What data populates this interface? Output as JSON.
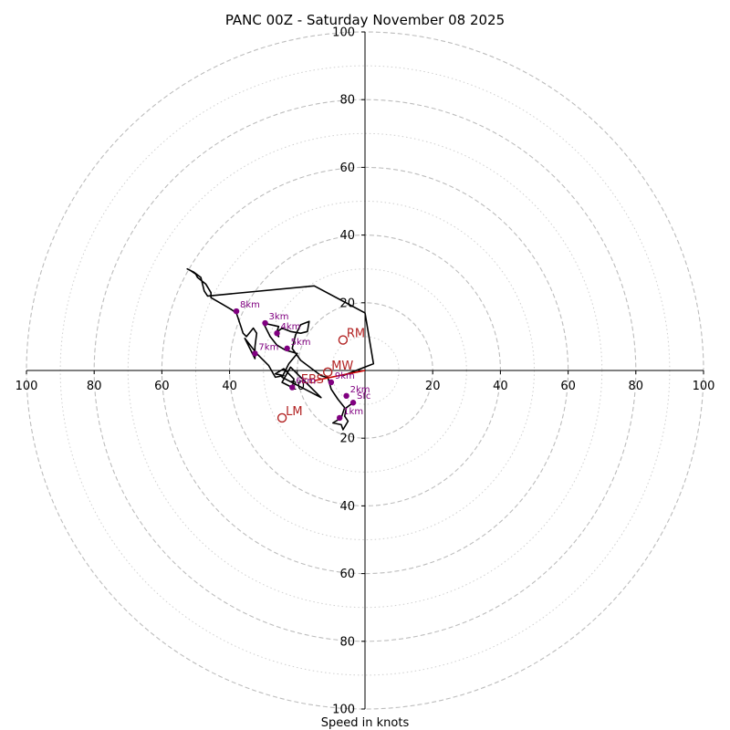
{
  "chart_data": {
    "type": "hodograph",
    "title": "PANC 00Z - Saturday November 08 2025",
    "xlabel": "Speed in knots",
    "units": "kt",
    "xlim": [
      -100,
      100
    ],
    "ylim": [
      -100,
      100
    ],
    "ring_major": [
      20,
      40,
      60,
      80,
      100
    ],
    "ring_minor": [
      10,
      30,
      50,
      70,
      90
    ],
    "x_ticks": [
      {
        "value": -100,
        "label": "100"
      },
      {
        "value": -80,
        "label": "80"
      },
      {
        "value": -60,
        "label": "60"
      },
      {
        "value": -40,
        "label": "40"
      },
      {
        "value": -20,
        "label": "20"
      },
      {
        "value": 20,
        "label": "20"
      },
      {
        "value": 40,
        "label": "40"
      },
      {
        "value": 60,
        "label": "60"
      },
      {
        "value": 80,
        "label": "80"
      },
      {
        "value": 100,
        "label": "100"
      }
    ],
    "y_ticks": [
      {
        "value": 100,
        "label": "100"
      },
      {
        "value": 80,
        "label": "80"
      },
      {
        "value": 60,
        "label": "60"
      },
      {
        "value": 40,
        "label": "40"
      },
      {
        "value": 20,
        "label": "20"
      },
      {
        "value": -20,
        "label": "20"
      },
      {
        "value": -40,
        "label": "40"
      },
      {
        "value": -60,
        "label": "60"
      },
      {
        "value": -80,
        "label": "80"
      },
      {
        "value": -100,
        "label": "100"
      }
    ],
    "trace": {
      "color": "#000000",
      "points": [
        [
          -3.5,
          -9.5
        ],
        [
          -5.5,
          -11.0
        ],
        [
          -6.0,
          -13.5
        ],
        [
          -5.0,
          -15.0
        ],
        [
          -6.5,
          -17.5
        ],
        [
          -7.0,
          -16.0
        ],
        [
          -9.5,
          -15.5
        ],
        [
          -7.0,
          -14.0
        ],
        [
          -6.0,
          -11.0
        ],
        [
          -8.0,
          -8.5
        ],
        [
          -10.0,
          -5.5
        ],
        [
          -11.0,
          -2.0
        ],
        [
          -11.5,
          -2.0
        ],
        [
          -13.0,
          -1.5
        ],
        [
          -19.0,
          3.0
        ],
        [
          -21.5,
          6.5
        ],
        [
          -20.5,
          10.5
        ],
        [
          -19.0,
          13.5
        ],
        [
          -16.5,
          14.5
        ],
        [
          -17.0,
          11.5
        ],
        [
          -19.0,
          11.0
        ],
        [
          -22.0,
          11.5
        ],
        [
          -24.5,
          12.5
        ],
        [
          -26.5,
          11.0
        ],
        [
          -25.5,
          10.0
        ],
        [
          -26.0,
          11.5
        ],
        [
          -25.5,
          13.0
        ],
        [
          -30.0,
          14.0
        ],
        [
          -28.0,
          10.0
        ],
        [
          -26.0,
          7.5
        ],
        [
          -23.5,
          6.0
        ],
        [
          -20.0,
          5.0
        ],
        [
          -22.5,
          2.0
        ],
        [
          -24.5,
          -2.0
        ],
        [
          -13.0,
          -8.0
        ],
        [
          -22.0,
          1.0
        ],
        [
          -24.5,
          -3.5
        ],
        [
          -21.5,
          -5.0
        ],
        [
          -21.0,
          -2.5
        ],
        [
          -24.0,
          0.5
        ],
        [
          -26.5,
          -1.0
        ],
        [
          -24.0,
          -1.5
        ],
        [
          -26.5,
          -2.0
        ],
        [
          -28.5,
          1.5
        ],
        [
          -32.0,
          5.0
        ],
        [
          -35.5,
          9.5
        ],
        [
          -32.5,
          3.5
        ],
        [
          -32.5,
          7.0
        ],
        [
          -32.0,
          11.0
        ],
        [
          -33.0,
          12.5
        ],
        [
          -35.0,
          10.0
        ],
        [
          -36.0,
          11.0
        ],
        [
          -36.5,
          12.5
        ],
        [
          -38.0,
          17.0
        ],
        [
          -39.5,
          18.0
        ],
        [
          -42.0,
          19.5
        ],
        [
          -45.5,
          21.5
        ],
        [
          -45.5,
          23.0
        ],
        [
          -47.0,
          25.5
        ],
        [
          -49.5,
          27.5
        ],
        [
          -50.0,
          28.5
        ],
        [
          -51.5,
          29.5
        ],
        [
          -52.5,
          30.0
        ],
        [
          -50.5,
          29.0
        ],
        [
          -48.5,
          27.5
        ],
        [
          -47.5,
          23.5
        ],
        [
          -46.5,
          22.0
        ],
        [
          -15.0,
          25.0
        ],
        [
          0.0,
          17.0
        ],
        [
          2.5,
          2.0
        ],
        [
          -6.5,
          -1.5
        ]
      ]
    },
    "height_markers": [
      {
        "label": "Sfc",
        "x": -3.5,
        "y": -9.5
      },
      {
        "label": "1km",
        "x": -7.5,
        "y": -14.0
      },
      {
        "label": "2km",
        "x": -5.5,
        "y": -7.5
      },
      {
        "label": "3km",
        "x": -29.5,
        "y": 14.0
      },
      {
        "label": "4km",
        "x": -26.0,
        "y": 11.0
      },
      {
        "label": "5km",
        "x": -23.0,
        "y": 6.5
      },
      {
        "label": "6km",
        "x": -21.5,
        "y": -5.0
      },
      {
        "label": "7km",
        "x": -32.5,
        "y": 5.0
      },
      {
        "label": "8km",
        "x": -38.0,
        "y": 17.5
      },
      {
        "label": "9km",
        "x": -10.0,
        "y": -3.5
      }
    ],
    "storm_motion": [
      {
        "label": "RM",
        "x": -6.5,
        "y": 9.0
      },
      {
        "label": "LM",
        "x": -24.5,
        "y": -14.0
      },
      {
        "label": "MW",
        "x": -11.0,
        "y": -0.5
      }
    ],
    "shear_vector": {
      "label": "EBS",
      "from_x": 0.0,
      "from_y": 0.0,
      "to_x": -15.0,
      "to_y": -3.0
    },
    "colors": {
      "trace": "#000000",
      "height_marker": "#800080",
      "storm_motion": "#b22222",
      "shear": "#cc0000",
      "ring": "#bdbdbd",
      "axis": "#000000"
    }
  }
}
